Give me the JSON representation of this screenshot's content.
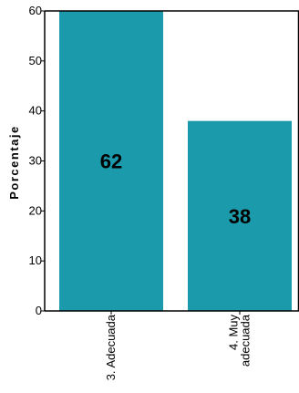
{
  "chart_data": {
    "type": "bar",
    "categories": [
      "3. Adecuada",
      "4. Muy adecuada"
    ],
    "category_lines": [
      [
        "3. Adecuada"
      ],
      [
        "4. Muy",
        "adecuada"
      ]
    ],
    "values": [
      62,
      38
    ],
    "data_labels": [
      "62",
      "38"
    ],
    "ylabel": "Porcentaje",
    "xlabel": "",
    "title": "",
    "ylim": [
      0,
      60
    ],
    "yticks": [
      0,
      10,
      20,
      30,
      40,
      50,
      60
    ],
    "bar_color": "#1a9aaa",
    "grid": false,
    "legend": "none"
  }
}
